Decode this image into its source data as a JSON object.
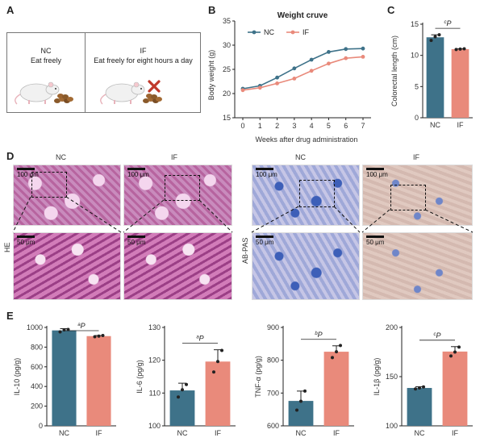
{
  "panels": {
    "A": "A",
    "B": "B",
    "C": "C",
    "D": "D",
    "E": "E"
  },
  "panelA": {
    "groups": [
      {
        "name": "NC",
        "desc": "Eat freely"
      },
      {
        "name": "IF",
        "desc": "Eat freely for eight hours a day"
      }
    ],
    "colors": {
      "cross": "#c0392b",
      "mouse": "#f1f1f1",
      "food": "#8a5a2b"
    }
  },
  "panelD": {
    "col_labels": [
      "NC",
      "IF",
      "NC",
      "IF"
    ],
    "row_labels": [
      "HE",
      "AB-PAS"
    ],
    "scale_top": "100 μm",
    "scale_bottom": "50 μm"
  },
  "colors": {
    "nc": "#3e7289",
    "if": "#e98a7b"
  },
  "chart_data": [
    {
      "type": "line",
      "panel": "B",
      "title": "Weight cruve",
      "xlabel": "Weeks after drug administration",
      "ylabel": "Body weight (g)",
      "x": [
        0,
        1,
        2,
        3,
        4,
        5,
        6,
        7
      ],
      "xlim": [
        0,
        7
      ],
      "ylim": [
        15,
        35
      ],
      "yticks": [
        15,
        20,
        25,
        30,
        35
      ],
      "legend": "top-left",
      "series": [
        {
          "name": "NC",
          "color": "#3e7289",
          "values": [
            21.0,
            21.6,
            23.3,
            25.2,
            27.0,
            28.6,
            29.2,
            29.3
          ]
        },
        {
          "name": "IF",
          "color": "#e98a7b",
          "values": [
            20.7,
            21.2,
            22.1,
            23.1,
            24.7,
            26.2,
            27.3,
            27.6
          ]
        }
      ]
    },
    {
      "type": "bar",
      "panel": "C",
      "ylabel": "Colorectal length (cm)",
      "categories": [
        "NC",
        "IF"
      ],
      "values": [
        12.9,
        11.0
      ],
      "errors": [
        0.4,
        0.05
      ],
      "points": [
        [
          12.4,
          13.0,
          13.3
        ],
        [
          10.95,
          11.0,
          11.05
        ]
      ],
      "ylim": [
        0,
        15
      ],
      "yticks": [
        0,
        5,
        10,
        15
      ],
      "annotation": "cP"
    },
    {
      "type": "bar",
      "panel": "E1",
      "ylabel": "IL-10 (pg/g)",
      "categories": [
        "NC",
        "IF"
      ],
      "values": [
        970,
        912
      ],
      "errors": [
        18,
        6
      ],
      "points": [
        [
          955,
          975,
          980
        ],
        [
          906,
          912,
          918
        ]
      ],
      "ylim": [
        0,
        1000
      ],
      "yticks": [
        0,
        200,
        400,
        600,
        800,
        1000
      ],
      "annotation": "aP"
    },
    {
      "type": "bar",
      "panel": "E2",
      "ylabel": "IL-6 (pg/g)",
      "categories": [
        "NC",
        "IF"
      ],
      "values": [
        110.8,
        119.6
      ],
      "errors": [
        2.2,
        3.6
      ],
      "points": [
        [
          108.8,
          111.0,
          112.6
        ],
        [
          116.4,
          119.6,
          123.0
        ]
      ],
      "ylim": [
        100,
        130
      ],
      "yticks": [
        100,
        110,
        120,
        130
      ],
      "annotation": "aP"
    },
    {
      "type": "bar",
      "panel": "E3",
      "ylabel": "TNF-α (pg/g)",
      "categories": [
        "NC",
        "IF"
      ],
      "values": [
        676,
        826
      ],
      "errors": [
        30,
        18
      ],
      "points": [
        [
          648,
          675,
          706
        ],
        [
          808,
          826,
          845
        ]
      ],
      "ylim": [
        600,
        900
      ],
      "yticks": [
        600,
        700,
        800,
        900
      ],
      "annotation": "bP"
    },
    {
      "type": "bar",
      "panel": "E4",
      "ylabel": "IL-1β (pg/g)",
      "categories": [
        "NC",
        "IF"
      ],
      "values": [
        138.5,
        175.5
      ],
      "errors": [
        1.2,
        5.0
      ],
      "points": [
        [
          137.5,
          138.5,
          139.5
        ],
        [
          171,
          175,
          180
        ]
      ],
      "ylim": [
        100,
        200
      ],
      "yticks": [
        100,
        150,
        200
      ],
      "annotation": "cP"
    }
  ]
}
